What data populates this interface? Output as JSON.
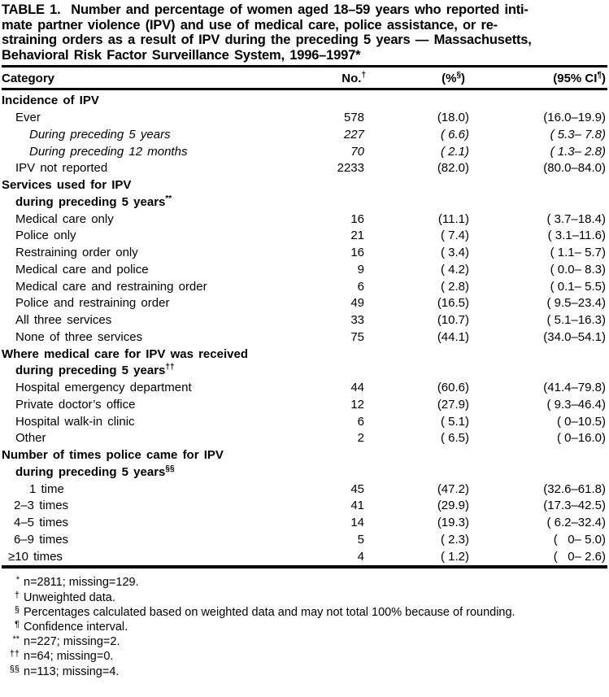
{
  "title": {
    "lines": [
      "TABLE 1.  Number and percentage of women aged 18–59 years who reported inti-",
      "mate partner violence (IPV) and use of medical care, police assistance, or re-",
      "straining orders as a result of IPV during the preceding 5 years — Massachusetts,",
      "Behavioral Risk Factor Surveillance System, 1996–1997*"
    ]
  },
  "columns": {
    "category": "Category",
    "no": {
      "text": "No.",
      "sup": "†"
    },
    "pct": {
      "pre": "(%",
      "sup": "§",
      "post": ")"
    },
    "ci": {
      "pre": "(95% CI",
      "sup": "¶",
      "post": ")"
    }
  },
  "table": {
    "rows": [
      {
        "style": "section",
        "label": "Incidence of IPV",
        "no": "",
        "pct": "",
        "ci": ""
      },
      {
        "style": "item",
        "label": "Ever",
        "no": "578",
        "pct": "(18.0)",
        "ci": "(16.0–19.9)"
      },
      {
        "style": "item2",
        "label": "During preceding 5 years",
        "no": "227",
        "pct": "( 6.6)",
        "ci": "( 5.3– 7.8)"
      },
      {
        "style": "item2",
        "label": "During preceding 12 months",
        "no": "70",
        "pct": "( 2.1)",
        "ci": "( 1.3– 2.8)"
      },
      {
        "style": "item",
        "label": "IPV not reported",
        "no": "2233",
        "pct": "(82.0)",
        "ci": "(80.0–84.0)"
      },
      {
        "style": "section",
        "label": "Services used for IPV",
        "no": "",
        "pct": "",
        "ci": ""
      },
      {
        "style": "section-cont",
        "label": "during preceding 5 years",
        "sup": "**",
        "no": "",
        "pct": "",
        "ci": ""
      },
      {
        "style": "item",
        "label": "Medical care only",
        "no": "16",
        "pct": "(11.1)",
        "ci": "( 3.7–18.4)"
      },
      {
        "style": "item",
        "label": "Police only",
        "no": "21",
        "pct": "( 7.4)",
        "ci": "( 3.1–11.6)"
      },
      {
        "style": "item",
        "label": "Restraining order only",
        "no": "16",
        "pct": "( 3.4)",
        "ci": "( 1.1– 5.7)"
      },
      {
        "style": "item",
        "label": "Medical care and police",
        "no": "9",
        "pct": "( 4.2)",
        "ci": "( 0.0– 8.3)"
      },
      {
        "style": "item",
        "label": "Medical care and restraining order",
        "no": "6",
        "pct": "( 2.8)",
        "ci": "( 0.1– 5.5)"
      },
      {
        "style": "item",
        "label": "Police and restraining order",
        "no": "49",
        "pct": "(16.5)",
        "ci": "( 9.5–23.4)"
      },
      {
        "style": "item",
        "label": "All three services",
        "no": "33",
        "pct": "(10.7)",
        "ci": "( 5.1–16.3)"
      },
      {
        "style": "item",
        "label": "None of three services",
        "no": "75",
        "pct": "(44.1)",
        "ci": "(34.0–54.1)"
      },
      {
        "style": "section",
        "label": "Where medical care for IPV was received",
        "no": "",
        "pct": "",
        "ci": ""
      },
      {
        "style": "section-cont",
        "label": "during preceding 5 years",
        "sup": "††",
        "no": "",
        "pct": "",
        "ci": ""
      },
      {
        "style": "item",
        "label": "Hospital emergency department",
        "no": "44",
        "pct": "(60.6)",
        "ci": "(41.4–79.8)"
      },
      {
        "style": "item",
        "label": "Private doctor’s office",
        "no": "12",
        "pct": "(27.9)",
        "ci": "( 9.3–46.4)"
      },
      {
        "style": "item",
        "label": "Hospital walk-in clinic",
        "no": "6",
        "pct": "( 5.1)",
        "ci": "( 0–10.5)"
      },
      {
        "style": "item",
        "label": "Other",
        "no": "2",
        "pct": "( 6.5)",
        "ci": "( 0–16.0)"
      },
      {
        "style": "section",
        "label": "Number of times police came for IPV",
        "no": "",
        "pct": "",
        "ci": ""
      },
      {
        "style": "section-cont",
        "label": "during preceding 5 years",
        "sup": "§§",
        "no": "",
        "pct": "",
        "ci": ""
      },
      {
        "style": "count1",
        "label": "1 time",
        "no": "45",
        "pct": "(47.2)",
        "ci": "(32.6–61.8)"
      },
      {
        "style": "count2",
        "label": "2–3 times",
        "no": "41",
        "pct": "(29.9)",
        "ci": "(17.3–42.5)"
      },
      {
        "style": "count2",
        "label": "4–5 times",
        "no": "14",
        "pct": "(19.3)",
        "ci": "( 6.2–32.4)"
      },
      {
        "style": "count2",
        "label": "6–9 times",
        "no": "5",
        "pct": "( 2.3)",
        "ci": "(   0– 5.0)"
      },
      {
        "style": "count3",
        "label": "≥10 times",
        "no": "4",
        "pct": "( 1.2)",
        "ci": "(   0– 2.6)"
      }
    ]
  },
  "footnotes": [
    {
      "marker": "*",
      "text": "n=2811; missing=129."
    },
    {
      "marker": "†",
      "text": "Unweighted data."
    },
    {
      "marker": "§",
      "text": "Percentages calculated based on weighted data and may not total 100% because of rounding."
    },
    {
      "marker": "¶",
      "text": "Confidence interval."
    },
    {
      "marker": "**",
      "text": "n=227; missing=2."
    },
    {
      "marker": "††",
      "text": "n=64; missing=0."
    },
    {
      "marker": "§§",
      "text": "n=113; missing=4."
    }
  ],
  "colors": {
    "text": "#000000",
    "background": "#ffffff",
    "rule": "#000000"
  }
}
